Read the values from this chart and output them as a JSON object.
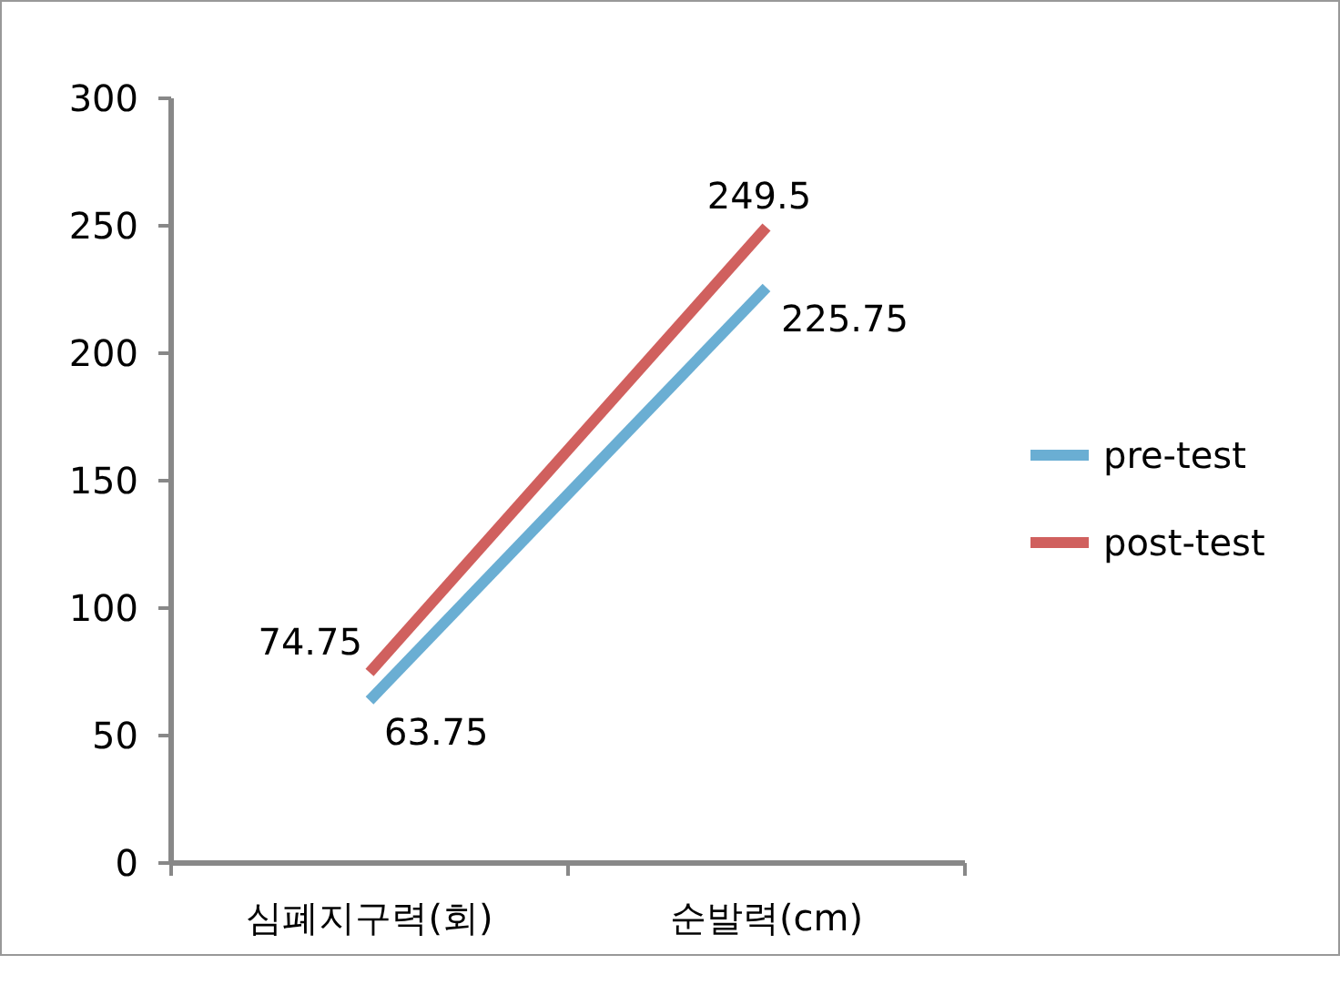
{
  "chart_data": {
    "type": "line",
    "categories": [
      "심폐지구력(회)",
      "순발력(cm)"
    ],
    "series": [
      {
        "name": "pre-test",
        "color": "#6aaed3",
        "values": [
          63.75,
          225.75
        ]
      },
      {
        "name": "post-test",
        "color": "#d0605e",
        "values": [
          74.75,
          249.5
        ]
      }
    ],
    "ylim": [
      0,
      300
    ],
    "yticks": [
      0,
      50,
      100,
      150,
      200,
      250,
      300
    ],
    "grid": false,
    "legend": "right",
    "marker": "none",
    "line_style": "solid",
    "data_labels": true
  }
}
